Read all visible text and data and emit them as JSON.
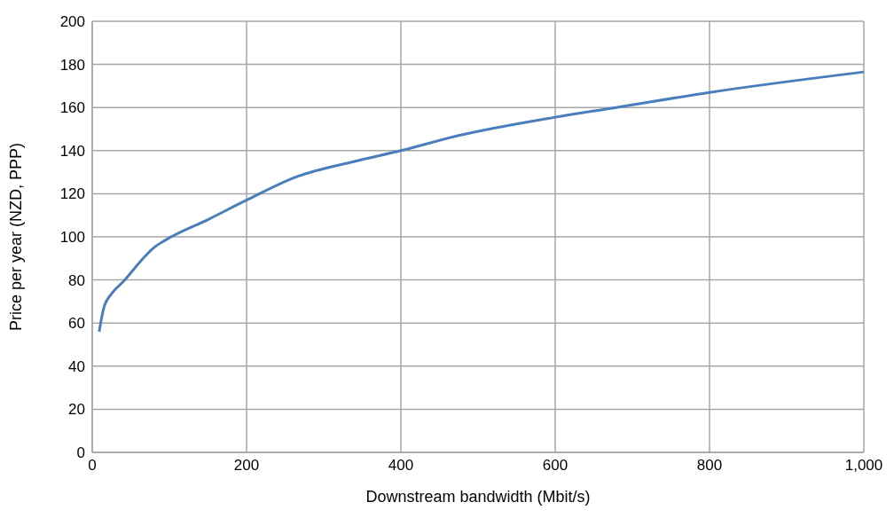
{
  "chart_data": {
    "type": "line",
    "xlabel": "Downstream bandwidth (Mbit/s)",
    "ylabel": "Price per year (NZD, PPP)",
    "xlim": [
      0,
      1000
    ],
    "xticks": [
      0,
      200,
      400,
      600,
      800,
      {
        "value": 1000,
        "label": "1,000"
      }
    ],
    "ylim": [
      0,
      200
    ],
    "yticks": [
      0,
      20,
      40,
      60,
      80,
      100,
      120,
      140,
      160,
      180,
      200
    ],
    "grid": true,
    "marker": "none",
    "line_style": "solid",
    "series": [
      {
        "color": "#4a7ebb",
        "x": [
          9,
          15,
          26,
          41,
          61,
          80,
          95,
          150,
          200,
          266,
          340,
          400,
          475,
          600,
          679,
          800,
          1000
        ],
        "values": [
          56,
          67,
          74,
          79.5,
          88,
          95,
          98.5,
          108,
          117,
          128,
          135,
          140,
          147,
          155.5,
          160,
          167,
          176.5
        ]
      }
    ]
  }
}
